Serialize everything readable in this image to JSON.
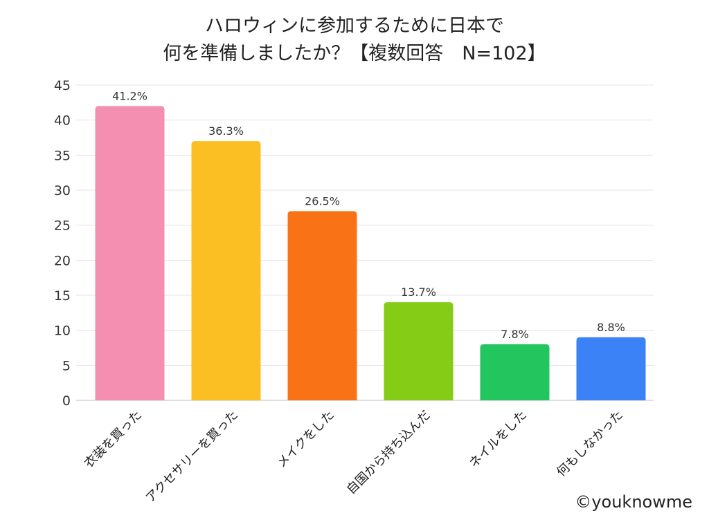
{
  "chart_data": {
    "type": "bar",
    "title_lines": [
      "ハロウィンに参加するために日本で",
      "何を準備しましたか？【複数回答　N=102】"
    ],
    "categories": [
      "衣装を買った",
      "アクセサリーを買った",
      "メイクをした",
      "自国から持ち込んだ",
      "ネイルをした",
      "何もしなかった"
    ],
    "values": [
      42,
      37,
      27,
      14,
      8,
      9
    ],
    "data_labels": [
      "41.2%",
      "36.3%",
      "26.5%",
      "13.7%",
      "7.8%",
      "8.8%"
    ],
    "colors": [
      "#f48fb1",
      "#fbbf24",
      "#f97316",
      "#84cc16",
      "#22c55e",
      "#3b82f6"
    ],
    "ylim": [
      0,
      45
    ],
    "yticks": [
      0,
      5,
      10,
      15,
      20,
      25,
      30,
      35,
      40,
      45
    ],
    "grid": true,
    "legend": "none",
    "xlabel": "",
    "ylabel": ""
  },
  "credit": "©youknowme"
}
